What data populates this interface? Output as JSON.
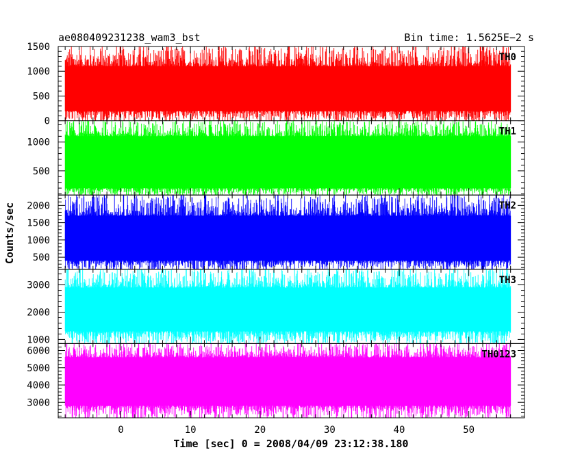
{
  "header": {
    "left": "ae080409231238_wam3_bst",
    "right": "Bin time: 1.5625E−2 s"
  },
  "chart_data": {
    "type": "line",
    "title": "ae080409231238_wam3_bst",
    "bin_time_label": "Bin time: 1.5625E−2 s",
    "xlabel": "Time [sec] 0 = 2008/04/09 23:12:38.180",
    "ylabel": "Counts/sec",
    "xlim": [
      -9,
      58
    ],
    "x_range_data": [
      -8.0,
      56.0
    ],
    "xticks": [
      0,
      10,
      20,
      30,
      40,
      50
    ],
    "xtick_labels": [
      "0",
      "10",
      "20",
      "30",
      "40",
      "50"
    ],
    "grid": false,
    "panels": [
      {
        "name": "TH0",
        "color": "#ff0000",
        "ylim": [
          0,
          1500
        ],
        "yticks": [
          0,
          500,
          1000,
          1500
        ],
        "ytick_labels": [
          "0",
          "500",
          "1000",
          "1500"
        ],
        "baseline": 650,
        "low": 200,
        "high": 1100,
        "spike_max": 1500
      },
      {
        "name": "TH1",
        "color": "#00ff00",
        "ylim": [
          80,
          1370
        ],
        "yticks": [
          500,
          1000
        ],
        "ytick_labels": [
          "500",
          "1000"
        ],
        "baseline": 650,
        "low": 200,
        "high": 1100,
        "spike_max": 1370
      },
      {
        "name": "TH2",
        "color": "#0000ff",
        "ylim": [
          150,
          2300
        ],
        "yticks": [
          500,
          1000,
          1500,
          2000
        ],
        "ytick_labels": [
          "500",
          "1000",
          "1500",
          "2000"
        ],
        "baseline": 1000,
        "low": 400,
        "high": 1700,
        "spike_max": 2300
      },
      {
        "name": "TH3",
        "color": "#00ffff",
        "ylim": [
          850,
          3570
        ],
        "yticks": [
          1000,
          2000,
          3000
        ],
        "ytick_labels": [
          "1000",
          "2000",
          "3000"
        ],
        "baseline": 2000,
        "low": 1300,
        "high": 2900,
        "spike_max": 3570
      },
      {
        "name": "TH0123",
        "color": "#ff00ff",
        "ylim": [
          2100,
          6400
        ],
        "yticks": [
          3000,
          4000,
          5000,
          6000
        ],
        "ytick_labels": [
          "3000",
          "4000",
          "5000",
          "6000"
        ],
        "baseline": 4200,
        "low": 2800,
        "high": 5600,
        "spike_max": 6400
      }
    ]
  }
}
